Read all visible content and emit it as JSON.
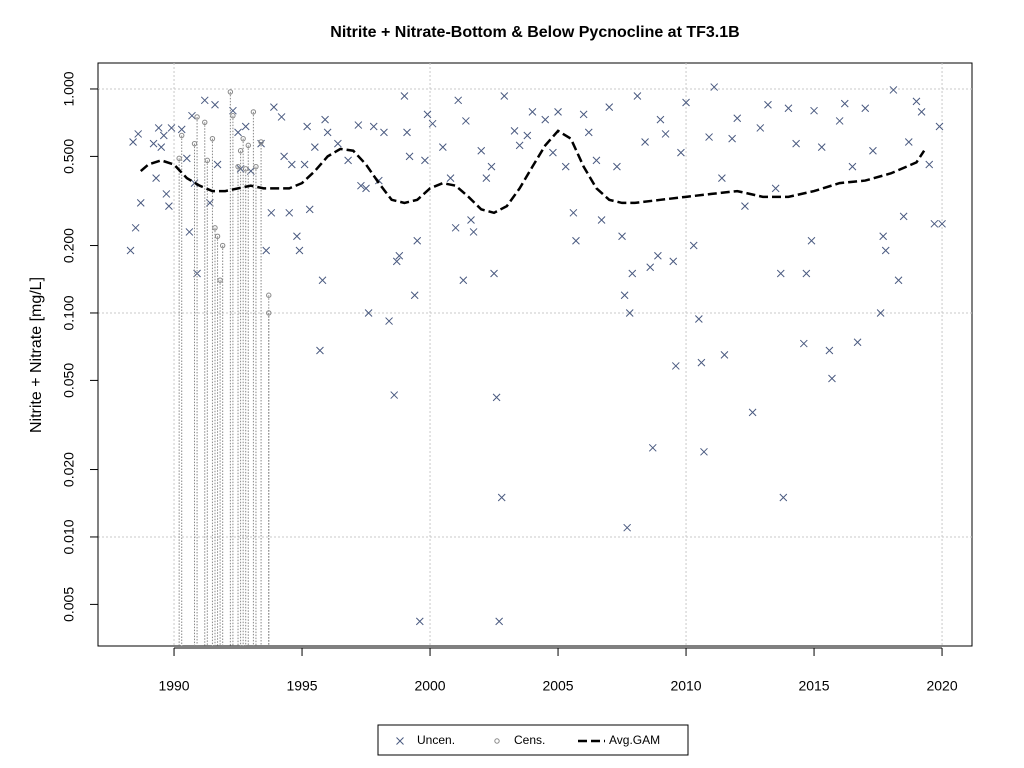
{
  "chart_data": {
    "type": "scatter",
    "title": "Nitrite + Nitrate-Bottom & Below Pycnocline at TF3.1B",
    "ylabel": "Nitrite + Nitrate [mg/L]",
    "log_y": true,
    "xlim": [
      1987.03,
      2021.17
    ],
    "ylim": [
      0.00326,
      1.306
    ],
    "xticks": [
      1990,
      1995,
      2000,
      2005,
      2010,
      2015,
      2020
    ],
    "yticks": [
      0.005,
      {
        "value": 0.01,
        "label": "0.010"
      },
      {
        "value": 0.02,
        "label": "0.020"
      },
      {
        "value": 0.05,
        "label": "0.050"
      },
      {
        "value": 0.1,
        "label": "0.100"
      },
      {
        "value": 0.2,
        "label": "0.200"
      },
      {
        "value": 0.5,
        "label": "0.500"
      },
      {
        "value": 1,
        "label": "1.000"
      }
    ],
    "grid_x": [
      1990,
      2000,
      2010,
      2020
    ],
    "grid_y": [
      0.01,
      0.1,
      1
    ],
    "legend": "bottom",
    "series": [
      {
        "name": "Uncen.",
        "type": "scatter",
        "marker": "x",
        "color": "#4a5a80",
        "x": [
          1988.3,
          1988.4,
          1988.5,
          1988.6,
          1988.7,
          1989.2,
          1989.3,
          1989.4,
          1989.5,
          1989.6,
          1989.7,
          1989.8,
          1989.9,
          1990.3,
          1990.5,
          1990.6,
          1990.7,
          1990.8,
          1990.9,
          1991.2,
          1991.4,
          1991.6,
          1991.7,
          1992.3,
          1992.5,
          1992.6,
          1992.8,
          1993.0,
          1993.4,
          1993.6,
          1993.8,
          1993.9,
          1994.2,
          1994.3,
          1994.5,
          1994.6,
          1994.8,
          1994.9,
          1995.1,
          1995.2,
          1995.3,
          1995.5,
          1995.7,
          1995.8,
          1995.9,
          1996.0,
          1996.4,
          1996.8,
          1997.2,
          1997.3,
          1997.5,
          1997.6,
          1997.8,
          1998.0,
          1998.2,
          1998.4,
          1998.6,
          1998.7,
          1998.8,
          1999.0,
          1999.1,
          1999.2,
          1999.4,
          1999.5,
          1999.6,
          1999.8,
          1999.9,
          2000.1,
          2000.5,
          2000.8,
          2001.0,
          2001.1,
          2001.3,
          2001.4,
          2001.6,
          2001.7,
          2002.0,
          2002.2,
          2002.4,
          2002.5,
          2002.6,
          2002.7,
          2002.8,
          2002.9,
          2003.3,
          2003.5,
          2003.8,
          2004.0,
          2004.5,
          2004.8,
          2005.0,
          2005.3,
          2005.6,
          2005.7,
          2006.0,
          2006.2,
          2006.5,
          2006.7,
          2007.0,
          2007.3,
          2007.5,
          2007.6,
          2007.7,
          2007.8,
          2007.9,
          2008.1,
          2008.4,
          2008.6,
          2008.7,
          2008.9,
          2009.0,
          2009.2,
          2009.5,
          2009.6,
          2009.8,
          2010.0,
          2010.3,
          2010.5,
          2010.6,
          2010.7,
          2010.9,
          2011.1,
          2011.4,
          2011.5,
          2011.8,
          2012.0,
          2012.3,
          2012.6,
          2012.9,
          2013.2,
          2013.5,
          2013.7,
          2013.8,
          2014.0,
          2014.3,
          2014.6,
          2014.7,
          2014.9,
          2015.0,
          2015.3,
          2015.6,
          2015.7,
          2016.0,
          2016.2,
          2016.5,
          2016.7,
          2017.0,
          2017.3,
          2017.6,
          2017.7,
          2017.8,
          2018.1,
          2018.3,
          2018.5,
          2018.7,
          2019.0,
          2019.2,
          2019.5,
          2019.7,
          2019.9,
          2020.0
        ],
        "values": [
          0.19,
          0.58,
          0.24,
          0.63,
          0.31,
          0.57,
          0.4,
          0.67,
          0.55,
          0.62,
          0.34,
          0.3,
          0.67,
          0.66,
          0.49,
          0.23,
          0.76,
          0.38,
          0.15,
          0.89,
          0.31,
          0.85,
          0.46,
          0.8,
          0.64,
          0.44,
          0.68,
          0.43,
          0.57,
          0.19,
          0.28,
          0.83,
          0.75,
          0.5,
          0.28,
          0.46,
          0.22,
          0.19,
          0.46,
          0.68,
          0.29,
          0.55,
          0.068,
          0.14,
          0.73,
          0.64,
          0.57,
          0.48,
          0.69,
          0.37,
          0.36,
          0.1,
          0.68,
          0.39,
          0.64,
          0.092,
          0.043,
          0.17,
          0.18,
          0.93,
          0.64,
          0.5,
          0.12,
          0.21,
          0.0042,
          0.48,
          0.77,
          0.7,
          0.55,
          0.4,
          0.24,
          0.89,
          0.14,
          0.72,
          0.26,
          0.23,
          0.53,
          0.4,
          0.45,
          0.15,
          0.042,
          0.0042,
          0.015,
          0.93,
          0.65,
          0.56,
          0.62,
          0.79,
          0.73,
          0.52,
          0.79,
          0.45,
          0.28,
          0.21,
          0.77,
          0.64,
          0.48,
          0.26,
          0.83,
          0.45,
          0.22,
          0.12,
          0.011,
          0.1,
          0.15,
          0.93,
          0.58,
          0.16,
          0.025,
          0.18,
          0.73,
          0.63,
          0.17,
          0.058,
          0.52,
          0.87,
          0.2,
          0.094,
          0.06,
          0.024,
          0.61,
          1.02,
          0.4,
          0.065,
          0.6,
          0.74,
          0.3,
          0.036,
          0.67,
          0.85,
          0.36,
          0.15,
          0.015,
          0.82,
          0.57,
          0.073,
          0.15,
          0.21,
          0.8,
          0.55,
          0.068,
          0.051,
          0.72,
          0.86,
          0.45,
          0.074,
          0.82,
          0.53,
          0.1,
          0.22,
          0.19,
          0.99,
          0.14,
          0.27,
          0.58,
          0.88,
          0.79,
          0.46,
          0.25,
          0.68,
          0.25
        ]
      },
      {
        "name": "Cens.",
        "type": "censored",
        "marker": "o",
        "color": "#888888",
        "x": [
          1990.2,
          1990.3,
          1990.8,
          1990.9,
          1991.2,
          1991.3,
          1991.5,
          1991.6,
          1991.7,
          1991.8,
          1991.9,
          1992.2,
          1992.3,
          1992.5,
          1992.6,
          1992.7,
          1992.8,
          1992.9,
          1993.1,
          1993.2,
          1993.4,
          1993.7,
          1993.7
        ],
        "values": [
          0.49,
          0.62,
          0.57,
          0.75,
          0.71,
          0.48,
          0.6,
          0.24,
          0.22,
          0.14,
          0.2,
          0.97,
          0.76,
          0.45,
          0.53,
          0.6,
          0.44,
          0.56,
          0.79,
          0.45,
          0.58,
          0.12,
          0.1
        ]
      },
      {
        "name": "Avg.GAM",
        "type": "line",
        "color": "#000000",
        "x": [
          1988.7,
          1989.0,
          1989.5,
          1990.0,
          1990.5,
          1991.0,
          1991.5,
          1992.0,
          1992.5,
          1993.0,
          1993.5,
          1994.0,
          1994.5,
          1995.0,
          1995.5,
          1996.0,
          1996.5,
          1997.0,
          1997.5,
          1998.0,
          1998.5,
          1999.0,
          1999.5,
          2000.0,
          2000.5,
          2001.0,
          2001.5,
          2002.0,
          2002.5,
          2003.0,
          2003.5,
          2004.0,
          2004.5,
          2005.0,
          2005.5,
          2006.0,
          2006.5,
          2007.0,
          2007.5,
          2008.0,
          2009.0,
          2010.0,
          2011.0,
          2012.0,
          2013.0,
          2014.0,
          2015.0,
          2016.0,
          2017.0,
          2018.0,
          2019.0,
          2019.3
        ],
        "values": [
          0.43,
          0.46,
          0.48,
          0.46,
          0.4,
          0.37,
          0.35,
          0.35,
          0.36,
          0.37,
          0.36,
          0.36,
          0.36,
          0.38,
          0.43,
          0.5,
          0.54,
          0.53,
          0.46,
          0.38,
          0.32,
          0.31,
          0.32,
          0.36,
          0.38,
          0.37,
          0.33,
          0.29,
          0.28,
          0.3,
          0.36,
          0.45,
          0.56,
          0.65,
          0.6,
          0.45,
          0.36,
          0.32,
          0.31,
          0.31,
          0.32,
          0.33,
          0.34,
          0.35,
          0.33,
          0.33,
          0.35,
          0.38,
          0.39,
          0.42,
          0.47,
          0.53
        ]
      }
    ]
  }
}
